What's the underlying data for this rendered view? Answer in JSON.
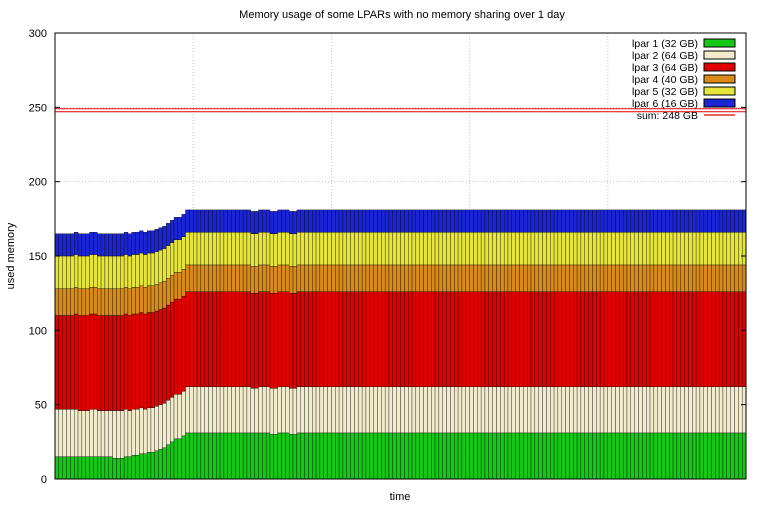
{
  "chart_data": {
    "type": "area",
    "stacked": true,
    "title": "Memory usage of some LPARs with no memory sharing over 1 day",
    "xlabel": "time",
    "ylabel": "used memory",
    "ylim": [
      0,
      300
    ],
    "yticks": [
      0,
      50,
      100,
      150,
      200,
      250,
      300
    ],
    "grid": true,
    "legend_position": "top-right",
    "x": [
      0,
      2,
      4,
      6,
      8,
      10,
      12,
      14,
      16,
      18,
      20,
      22,
      24,
      26,
      28,
      30,
      32,
      34,
      36,
      38,
      40,
      42,
      44,
      46,
      48,
      50,
      52,
      54,
      56,
      58,
      60,
      62,
      64,
      66,
      68,
      70,
      72,
      74,
      76,
      78,
      80,
      82,
      84,
      86,
      88,
      90,
      92,
      94,
      96,
      98,
      100,
      102,
      104,
      106,
      108,
      110,
      112,
      114,
      116,
      118,
      120,
      122,
      124,
      126,
      128,
      130,
      132,
      134,
      136,
      138,
      140,
      142,
      144,
      146,
      148,
      150,
      152,
      154,
      156,
      158,
      160,
      162,
      164,
      166,
      168,
      170,
      172,
      174,
      176,
      178,
      180,
      182,
      184,
      186,
      188,
      190,
      192,
      194,
      196,
      198,
      200,
      202,
      204,
      206,
      208,
      210,
      212,
      214,
      216,
      218,
      220,
      222,
      224,
      226,
      228,
      230,
      232,
      234,
      236,
      238,
      240,
      242,
      244,
      246,
      248,
      250,
      252,
      254,
      256,
      258,
      260,
      262,
      264,
      266,
      268,
      270,
      272,
      274,
      276,
      278,
      280,
      282,
      284,
      286,
      288,
      290,
      292,
      294,
      296,
      298,
      300,
      302,
      304,
      306,
      308,
      310,
      312,
      314,
      316,
      318,
      320,
      322,
      324,
      326,
      328,
      330,
      332,
      334,
      336,
      338,
      340,
      342,
      344,
      346,
      348,
      350,
      352,
      354,
      356,
      358
    ],
    "series": [
      {
        "name": "lpar 1 (32 GB)",
        "color": "#16c816",
        "values": [
          15,
          15,
          15,
          15,
          15,
          15,
          15,
          15,
          15,
          15,
          15,
          15,
          15,
          15,
          15,
          14,
          14,
          14,
          15,
          15,
          16,
          16,
          17,
          17,
          18,
          18,
          19,
          20,
          21,
          23,
          25,
          27,
          27,
          29,
          31,
          31,
          31,
          31,
          31,
          31,
          31,
          31,
          31,
          31,
          31,
          31,
          31,
          31,
          31,
          31,
          31,
          31,
          31,
          31,
          31,
          31,
          30,
          30,
          31,
          31,
          31,
          30,
          30,
          31,
          31,
          31,
          31,
          31,
          31,
          31,
          31,
          31,
          31,
          31,
          31,
          31,
          31,
          31,
          31,
          31,
          31,
          31,
          31,
          31,
          31,
          31,
          31,
          31,
          31,
          31,
          31,
          31,
          31,
          31,
          31,
          31,
          31,
          31,
          31,
          31,
          31,
          31,
          31,
          31,
          31,
          31,
          31,
          31,
          31,
          31,
          31,
          31,
          31,
          31,
          31,
          31,
          31,
          31,
          31,
          31,
          31,
          31,
          31,
          31,
          31,
          31,
          31,
          31,
          31,
          31,
          31,
          31,
          31,
          31,
          31,
          31,
          31,
          31,
          31,
          31,
          31,
          31,
          31,
          31,
          31,
          31,
          31,
          31,
          31,
          31,
          31,
          31,
          31,
          31,
          31,
          31,
          31,
          31,
          31,
          31,
          31,
          31,
          31,
          31,
          31,
          31,
          31,
          31,
          31,
          31,
          31,
          31,
          31,
          31,
          31,
          31,
          31,
          31,
          31,
          31
        ]
      },
      {
        "name": "lpar 2 (64 GB)",
        "color": "#f2eccc",
        "values": [
          32,
          32,
          32,
          32,
          32,
          32,
          31,
          31,
          31,
          32,
          32,
          31,
          31,
          31,
          31,
          32,
          32,
          32,
          32,
          31,
          31,
          31,
          31,
          30,
          30,
          30,
          30,
          30,
          30,
          30,
          30,
          30,
          30,
          30,
          31,
          31,
          31,
          31,
          31,
          31,
          31,
          31,
          31,
          31,
          31,
          31,
          31,
          31,
          31,
          31,
          31,
          30,
          30,
          31,
          31,
          31,
          31,
          31,
          31,
          31,
          31,
          31,
          31,
          31,
          31,
          31,
          31,
          31,
          31,
          31,
          31,
          31,
          31,
          31,
          31,
          31,
          31,
          31,
          31,
          31,
          31,
          31,
          31,
          31,
          31,
          31,
          31,
          31,
          31,
          31,
          31,
          31,
          31,
          31,
          31,
          31,
          31,
          31,
          31,
          31,
          31,
          31,
          31,
          31,
          31,
          31,
          31,
          31,
          31,
          31,
          31,
          31,
          31,
          31,
          31,
          31,
          31,
          31,
          31,
          31,
          31,
          31,
          31,
          31,
          31,
          31,
          31,
          31,
          31,
          31,
          31,
          31,
          31,
          31,
          31,
          31,
          31,
          31,
          31,
          31,
          31,
          31,
          31,
          31,
          31,
          31,
          31,
          31,
          31,
          31,
          31,
          31,
          31,
          31,
          31,
          31,
          31,
          31,
          31,
          31,
          31,
          31,
          31,
          31,
          31,
          31,
          31,
          31,
          31,
          31,
          31,
          31,
          31,
          31,
          31,
          31,
          31,
          31,
          31,
          31
        ]
      },
      {
        "name": "lpar 3 (64 GB)",
        "color": "#e00000",
        "values": [
          63,
          63,
          63,
          63,
          63,
          64,
          64,
          64,
          64,
          64,
          64,
          64,
          64,
          64,
          64,
          64,
          64,
          64,
          64,
          64,
          64,
          64,
          64,
          64,
          64,
          64,
          64,
          64,
          64,
          64,
          64,
          64,
          64,
          64,
          64,
          64,
          64,
          64,
          64,
          64,
          64,
          64,
          64,
          64,
          64,
          64,
          64,
          64,
          64,
          64,
          64,
          64,
          64,
          64,
          64,
          64,
          64,
          64,
          64,
          64,
          64,
          64,
          64,
          64,
          64,
          64,
          64,
          64,
          64,
          64,
          64,
          64,
          64,
          64,
          64,
          64,
          64,
          64,
          64,
          64,
          64,
          64,
          64,
          64,
          64,
          64,
          64,
          64,
          64,
          64,
          64,
          64,
          64,
          64,
          64,
          64,
          64,
          64,
          64,
          64,
          64,
          64,
          64,
          64,
          64,
          64,
          64,
          64,
          64,
          64,
          64,
          64,
          64,
          64,
          64,
          64,
          64,
          64,
          64,
          64,
          64,
          64,
          64,
          64,
          64,
          64,
          64,
          64,
          64,
          64,
          64,
          64,
          64,
          64,
          64,
          64,
          64,
          64,
          64,
          64,
          64,
          64,
          64,
          64,
          64,
          64,
          64,
          64,
          64,
          64,
          64,
          64,
          64,
          64,
          64,
          64,
          64,
          64,
          64,
          64,
          64,
          64,
          64,
          64,
          64,
          64,
          64,
          64,
          64,
          64,
          64,
          64,
          64,
          64,
          64,
          64,
          64,
          64,
          64,
          64
        ]
      },
      {
        "name": "lpar 4 (40 GB)",
        "color": "#d98a18",
        "values": [
          18,
          18,
          18,
          18,
          18,
          18,
          18,
          18,
          18,
          18,
          18,
          18,
          18,
          18,
          18,
          18,
          18,
          18,
          18,
          18,
          18,
          18,
          18,
          18,
          18,
          18,
          18,
          18,
          18,
          18,
          18,
          18,
          18,
          18,
          18,
          18,
          18,
          18,
          18,
          18,
          18,
          18,
          18,
          18,
          18,
          18,
          18,
          18,
          18,
          18,
          18,
          18,
          18,
          18,
          18,
          18,
          18,
          18,
          18,
          18,
          18,
          18,
          18,
          18,
          18,
          18,
          18,
          18,
          18,
          18,
          18,
          18,
          18,
          18,
          18,
          18,
          18,
          18,
          18,
          18,
          18,
          18,
          18,
          18,
          18,
          18,
          18,
          18,
          18,
          18,
          18,
          18,
          18,
          18,
          18,
          18,
          18,
          18,
          18,
          18,
          18,
          18,
          18,
          18,
          18,
          18,
          18,
          18,
          18,
          18,
          18,
          18,
          18,
          18,
          18,
          18,
          18,
          18,
          18,
          18,
          18,
          18,
          18,
          18,
          18,
          18,
          18,
          18,
          18,
          18,
          18,
          18,
          18,
          18,
          18,
          18,
          18,
          18,
          18,
          18,
          18,
          18,
          18,
          18,
          18,
          18,
          18,
          18,
          18,
          18,
          18,
          18,
          18,
          18,
          18,
          18,
          18,
          18,
          18,
          18,
          18,
          18,
          18,
          18,
          18,
          18,
          18,
          18,
          18,
          18,
          18,
          18,
          18,
          18,
          18,
          18,
          18,
          18,
          18,
          18
        ]
      },
      {
        "name": "lpar 5 (32 GB)",
        "color": "#e6e63a",
        "values": [
          22,
          22,
          22,
          22,
          22,
          22,
          22,
          22,
          22,
          22,
          22,
          22,
          22,
          22,
          22,
          22,
          22,
          22,
          22,
          22,
          22,
          22,
          22,
          22,
          22,
          22,
          22,
          22,
          22,
          22,
          22,
          22,
          22,
          22,
          22,
          22,
          22,
          22,
          22,
          22,
          22,
          22,
          22,
          22,
          22,
          22,
          22,
          22,
          22,
          22,
          22,
          22,
          22,
          22,
          22,
          22,
          22,
          22,
          22,
          22,
          22,
          22,
          22,
          22,
          22,
          22,
          22,
          22,
          22,
          22,
          22,
          22,
          22,
          22,
          22,
          22,
          22,
          22,
          22,
          22,
          22,
          22,
          22,
          22,
          22,
          22,
          22,
          22,
          22,
          22,
          22,
          22,
          22,
          22,
          22,
          22,
          22,
          22,
          22,
          22,
          22,
          22,
          22,
          22,
          22,
          22,
          22,
          22,
          22,
          22,
          22,
          22,
          22,
          22,
          22,
          22,
          22,
          22,
          22,
          22,
          22,
          22,
          22,
          22,
          22,
          22,
          22,
          22,
          22,
          22,
          22,
          22,
          22,
          22,
          22,
          22,
          22,
          22,
          22,
          22,
          22,
          22,
          22,
          22,
          22,
          22,
          22,
          22,
          22,
          22,
          22,
          22,
          22,
          22,
          22,
          22,
          22,
          22,
          22,
          22,
          22,
          22,
          22,
          22,
          22,
          22,
          22,
          22,
          22,
          22,
          22,
          22,
          22,
          22,
          22,
          22,
          22,
          22,
          22,
          22
        ]
      },
      {
        "name": "lpar 6 (16 GB)",
        "color": "#1b25d6",
        "values": [
          15,
          15,
          15,
          15,
          15,
          15,
          15,
          15,
          15,
          15,
          15,
          15,
          15,
          15,
          15,
          15,
          15,
          15,
          15,
          15,
          15,
          15,
          15,
          15,
          15,
          15,
          15,
          15,
          15,
          15,
          15,
          15,
          15,
          15,
          15,
          15,
          15,
          15,
          15,
          15,
          15,
          15,
          15,
          15,
          15,
          15,
          15,
          15,
          15,
          15,
          15,
          15,
          15,
          15,
          15,
          15,
          15,
          15,
          15,
          15,
          15,
          15,
          15,
          15,
          15,
          15,
          15,
          15,
          15,
          15,
          15,
          15,
          15,
          15,
          15,
          15,
          15,
          15,
          15,
          15,
          15,
          15,
          15,
          15,
          15,
          15,
          15,
          15,
          15,
          15,
          15,
          15,
          15,
          15,
          15,
          15,
          15,
          15,
          15,
          15,
          15,
          15,
          15,
          15,
          15,
          15,
          15,
          15,
          15,
          15,
          15,
          15,
          15,
          15,
          15,
          15,
          15,
          15,
          15,
          15,
          15,
          15,
          15,
          15,
          15,
          15,
          15,
          15,
          15,
          15,
          15,
          15,
          15,
          15,
          15,
          15,
          15,
          15,
          15,
          15,
          15,
          15,
          15,
          15,
          15,
          15,
          15,
          15,
          15,
          15,
          15,
          15,
          15,
          15,
          15,
          15,
          15,
          15,
          15,
          15,
          15,
          15,
          15,
          15,
          15,
          15,
          15,
          15,
          15,
          15,
          15,
          15,
          15,
          15,
          15,
          15,
          15,
          15,
          15,
          15
        ]
      }
    ],
    "reference_line": {
      "name": "sum: 248 GB",
      "value": 248,
      "color": "#e00000"
    }
  }
}
